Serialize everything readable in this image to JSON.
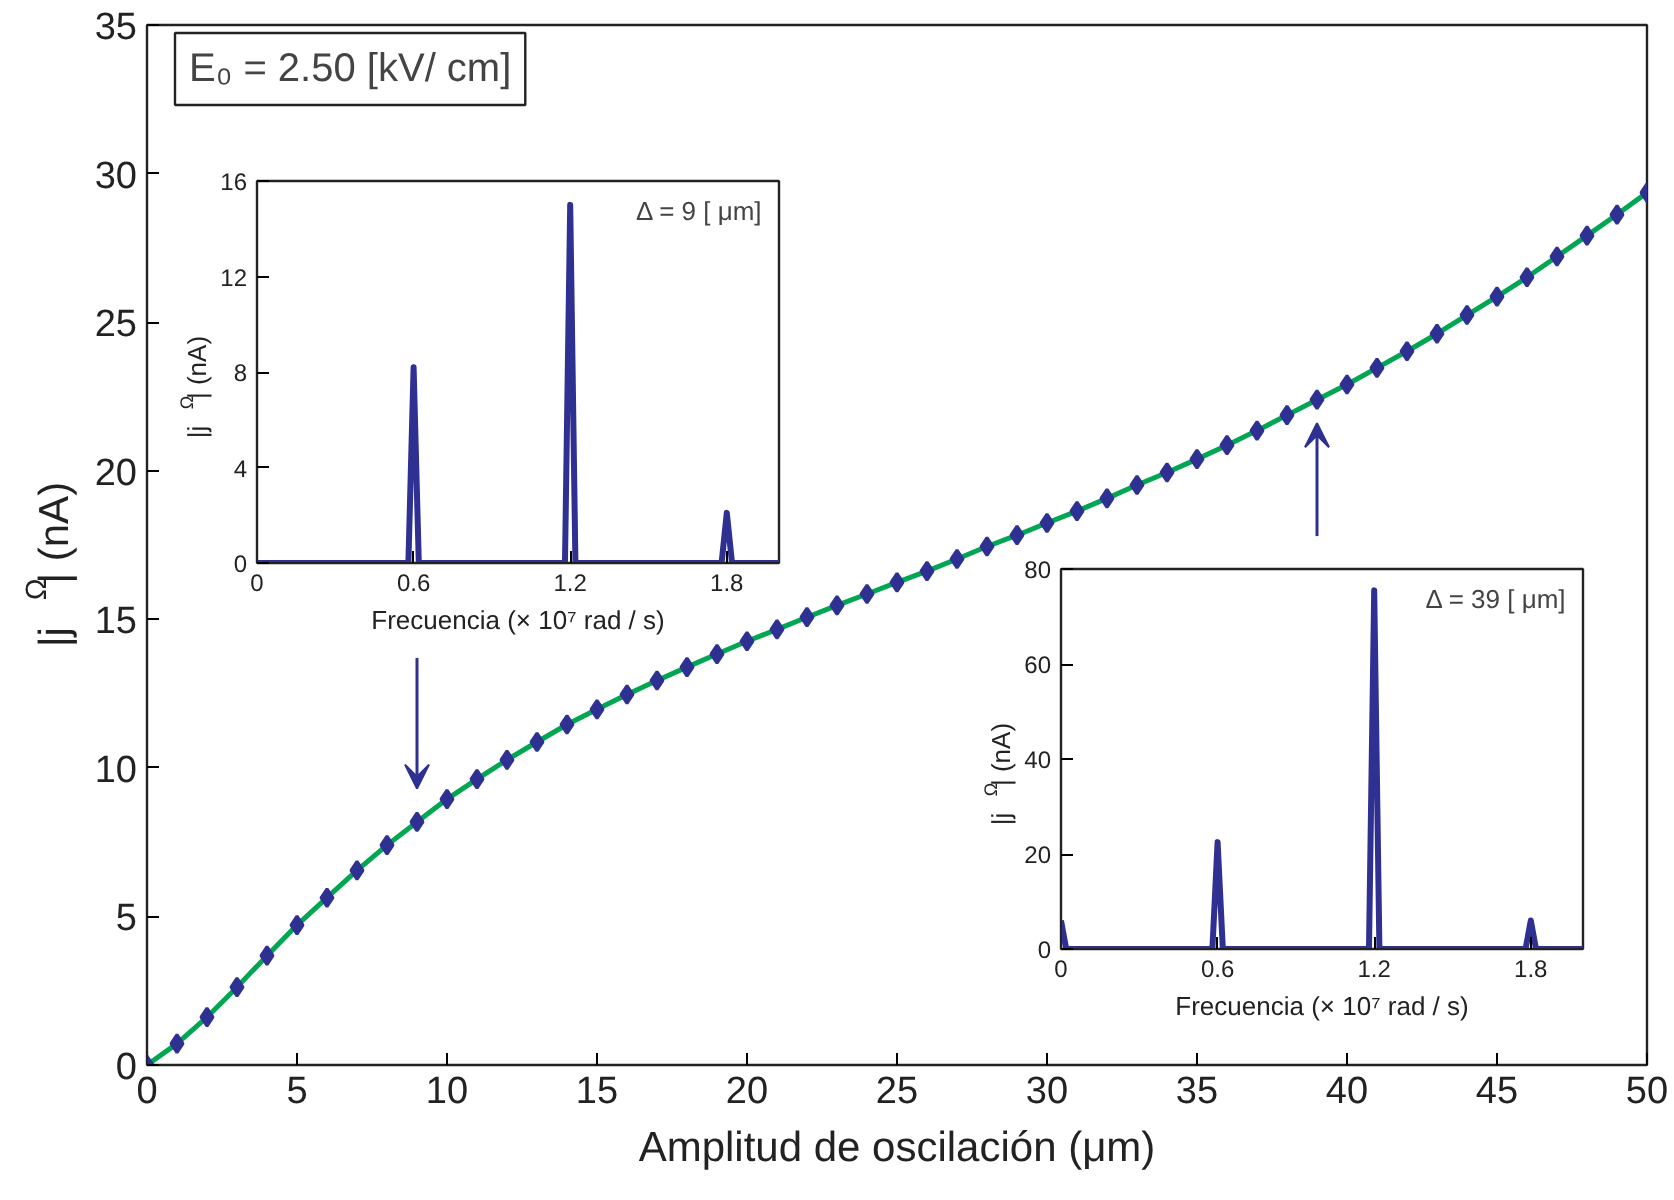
{
  "chart_data": [
    {
      "type": "line",
      "xlabel": "Amplitud de oscilación (μm)",
      "ylabel": "|j$^{Ω}$| (nA)",
      "annotations": [
        "E₀ = 2.50 [kV/ cm]"
      ],
      "x": [
        0,
        1,
        2,
        3,
        4,
        5,
        6,
        7,
        8,
        9,
        10,
        11,
        12,
        13,
        14,
        15,
        16,
        17,
        18,
        19,
        20,
        21,
        22,
        23,
        24,
        25,
        26,
        27,
        28,
        29,
        30,
        31,
        32,
        33,
        34,
        35,
        36,
        37,
        38,
        39,
        40,
        41,
        42,
        43,
        44,
        45,
        46,
        47,
        48,
        49,
        50
      ],
      "series": [
        {
          "type": "line",
          "color": "#00a651",
          "values": [
            0,
            0.72,
            1.61,
            2.62,
            3.68,
            4.71,
            5.63,
            6.55,
            7.4,
            8.18,
            8.95,
            9.62,
            10.27,
            10.87,
            11.46,
            11.97,
            12.47,
            12.94,
            13.39,
            13.83,
            14.26,
            14.66,
            15.07,
            15.47,
            15.85,
            16.24,
            16.62,
            17.03,
            17.45,
            17.83,
            18.24,
            18.64,
            19.07,
            19.52,
            19.94,
            20.39,
            20.86,
            21.35,
            21.87,
            22.39,
            22.9,
            23.46,
            24.02,
            24.61,
            25.24,
            25.86,
            26.51,
            27.21,
            27.91,
            28.62,
            29.36
          ]
        },
        {
          "type": "scatter",
          "color": "#2e3192",
          "marker": "diamond",
          "values": [
            0,
            0.72,
            1.61,
            2.62,
            3.68,
            4.71,
            5.63,
            6.55,
            7.4,
            8.18,
            8.95,
            9.62,
            10.27,
            10.87,
            11.46,
            11.97,
            12.47,
            12.94,
            13.39,
            13.83,
            14.26,
            14.66,
            15.07,
            15.47,
            15.85,
            16.24,
            16.62,
            17.03,
            17.45,
            17.83,
            18.24,
            18.64,
            19.07,
            19.52,
            19.94,
            20.39,
            20.86,
            21.35,
            21.87,
            22.39,
            22.9,
            23.46,
            24.02,
            24.61,
            25.24,
            25.86,
            26.51,
            27.21,
            27.91,
            28.62,
            29.36
          ]
        }
      ],
      "xlim": [
        0,
        50
      ],
      "ylim": [
        0,
        35
      ],
      "xticks": [
        0,
        5,
        10,
        15,
        20,
        25,
        30,
        35,
        40,
        45,
        50
      ],
      "yticks": [
        0,
        5,
        10,
        15,
        20,
        25,
        30,
        35
      ]
    },
    {
      "type": "line",
      "xlabel": "Frecuencia (× 10⁷ rad / s)",
      "ylabel": "|j$^{Ω}$| (nA)",
      "annotations": [
        "Δ = 9 [ μm]"
      ],
      "x": [
        0,
        0.58,
        0.6,
        0.62,
        1.18,
        1.2,
        1.22,
        1.78,
        1.8,
        1.82,
        2.0
      ],
      "series": [
        {
          "color": "#2e3192",
          "values": [
            0,
            0,
            8.2,
            0,
            0,
            15,
            0,
            0,
            2.1,
            0,
            0
          ]
        }
      ],
      "xlim": [
        0,
        2
      ],
      "ylim": [
        0,
        16
      ],
      "xticks": [
        0,
        0.6,
        1.2,
        1.8
      ],
      "yticks": [
        0,
        4,
        8,
        12,
        16
      ]
    },
    {
      "type": "line",
      "xlabel": "Frecuencia (× 10⁷ rad / s)",
      "ylabel": "|j$^{Ω}$| (nA)",
      "annotations": [
        "Δ = 39 [ μm]"
      ],
      "x": [
        0,
        0.02,
        0.58,
        0.6,
        0.62,
        1.18,
        1.2,
        1.22,
        1.78,
        1.8,
        1.82,
        2.0
      ],
      "series": [
        {
          "color": "#2e3192",
          "values": [
            6,
            0,
            0,
            22.5,
            0,
            0,
            75.5,
            0,
            0,
            6,
            0,
            0
          ]
        }
      ],
      "xlim": [
        0,
        2
      ],
      "ylim": [
        0,
        80
      ],
      "xticks": [
        0,
        0.6,
        1.2,
        1.8
      ],
      "yticks": [
        0,
        20,
        40,
        60,
        80
      ]
    }
  ]
}
